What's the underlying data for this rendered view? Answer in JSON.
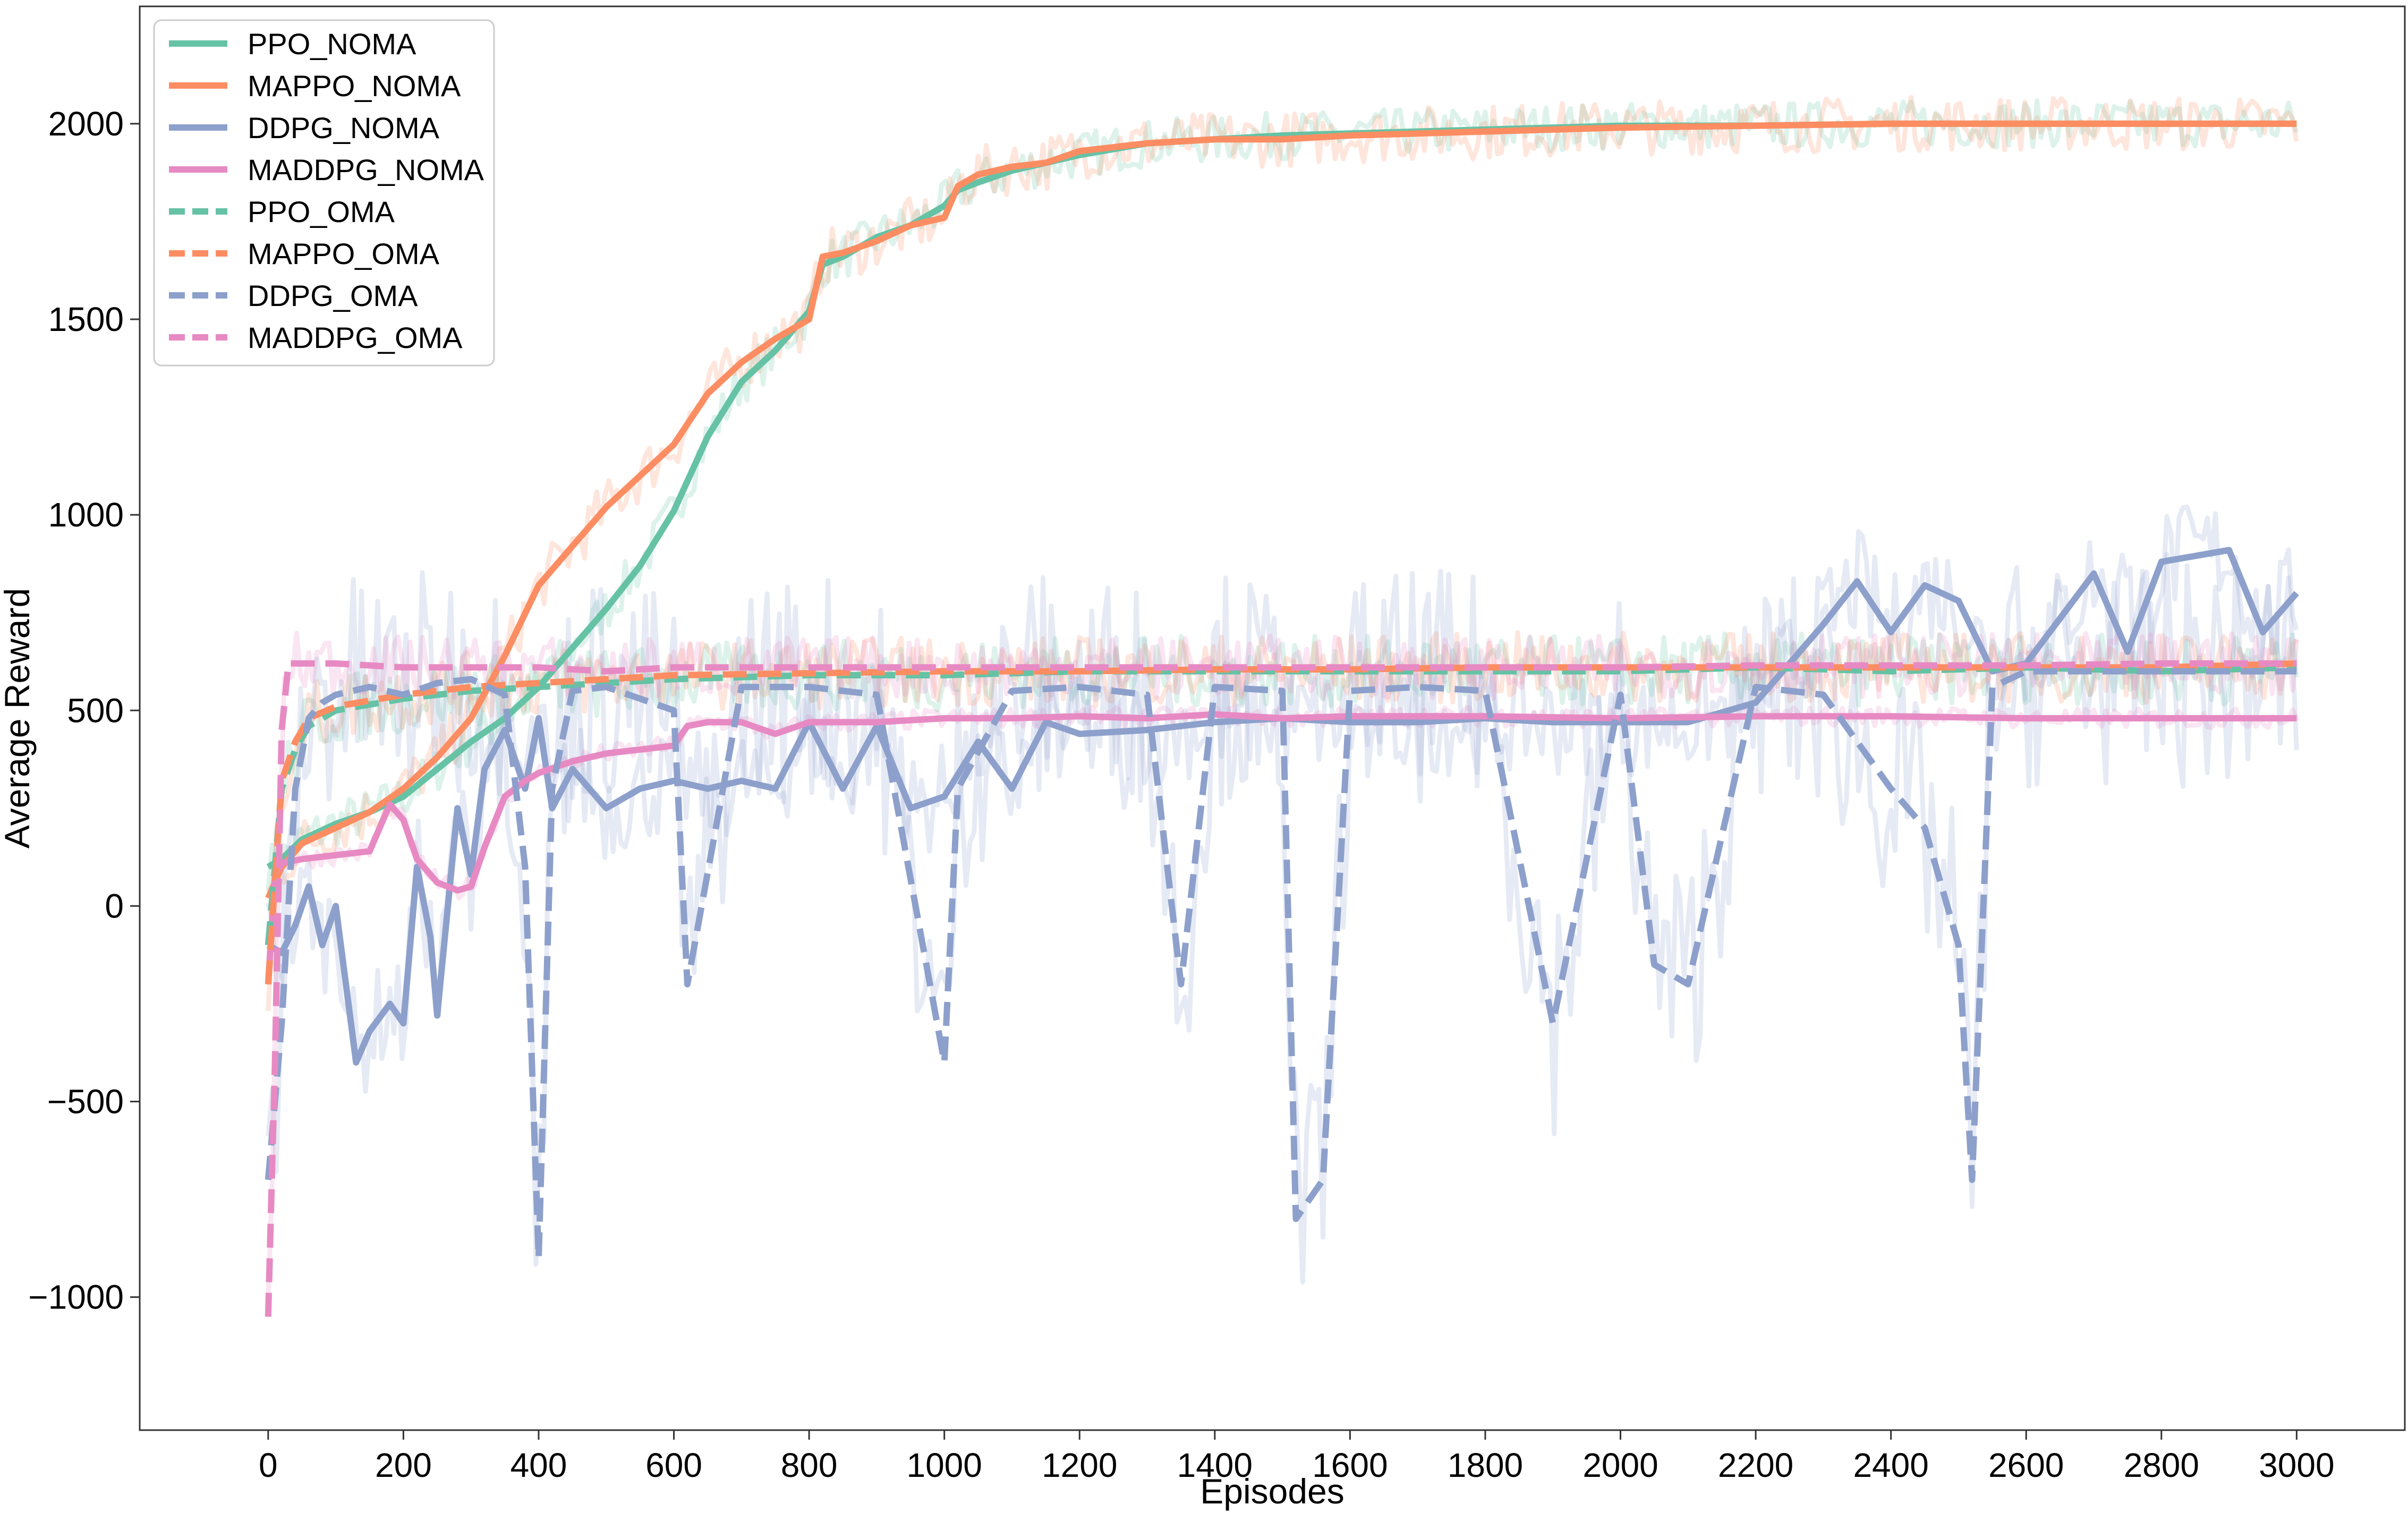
{
  "chart_data": {
    "type": "line",
    "title": "",
    "xlabel": "Episodes",
    "ylabel": "Average Reward",
    "xlim": [
      -190,
      3160
    ],
    "ylim": [
      -1340,
      2300
    ],
    "xticks": [
      0,
      200,
      400,
      600,
      800,
      1000,
      1200,
      1400,
      1600,
      1800,
      2000,
      2200,
      2400,
      2600,
      2800,
      3000
    ],
    "yticks": [
      -1000,
      -500,
      0,
      500,
      1000,
      1500,
      2000
    ],
    "grid": false,
    "legend_position": "top-left",
    "series": [
      {
        "name": "PPO_NOMA",
        "color": "#66c2a5",
        "dash": "solid",
        "x": [
          0,
          20,
          50,
          100,
          150,
          200,
          250,
          300,
          350,
          400,
          450,
          500,
          550,
          600,
          650,
          700,
          750,
          800,
          820,
          850,
          900,
          950,
          1000,
          1020,
          1050,
          1100,
          1150,
          1200,
          1300,
          1400,
          1500,
          1600,
          1700,
          1800,
          1900,
          2000,
          2200,
          2400,
          2600,
          2800,
          3000
        ],
        "y": [
          100,
          120,
          170,
          210,
          240,
          280,
          350,
          420,
          480,
          560,
          660,
          760,
          870,
          1010,
          1200,
          1340,
          1420,
          1520,
          1640,
          1660,
          1710,
          1740,
          1790,
          1830,
          1850,
          1880,
          1900,
          1920,
          1950,
          1960,
          1970,
          1975,
          1980,
          1985,
          1990,
          1995,
          1995,
          2000,
          2000,
          2000,
          2000
        ]
      },
      {
        "name": "MAPPO_NOMA",
        "color": "#fc8d62",
        "dash": "solid",
        "x": [
          0,
          20,
          50,
          100,
          150,
          200,
          250,
          300,
          350,
          400,
          450,
          500,
          550,
          600,
          650,
          700,
          750,
          800,
          820,
          850,
          900,
          950,
          1000,
          1020,
          1050,
          1100,
          1150,
          1200,
          1300,
          1400,
          1500,
          1600,
          1700,
          1800,
          1900,
          2000,
          2200,
          2400,
          2600,
          2800,
          3000
        ],
        "y": [
          20,
          100,
          160,
          200,
          240,
          300,
          380,
          480,
          640,
          820,
          920,
          1020,
          1100,
          1180,
          1310,
          1390,
          1450,
          1500,
          1660,
          1670,
          1700,
          1740,
          1760,
          1840,
          1870,
          1890,
          1900,
          1930,
          1950,
          1960,
          1960,
          1970,
          1975,
          1980,
          1985,
          1990,
          1995,
          2000,
          2000,
          2000,
          2000
        ]
      },
      {
        "name": "DDPG_NOMA",
        "color": "#8da0cb",
        "dash": "solid",
        "x": [
          0,
          20,
          40,
          60,
          80,
          100,
          130,
          150,
          180,
          200,
          220,
          240,
          250,
          280,
          300,
          320,
          350,
          380,
          400,
          420,
          450,
          500,
          550,
          600,
          650,
          700,
          750,
          800,
          850,
          900,
          950,
          1000,
          1050,
          1100,
          1150,
          1200,
          1300,
          1400,
          1500,
          1600,
          1700,
          1800,
          1900,
          2000,
          2100,
          2200,
          2300,
          2350,
          2400,
          2450,
          2500,
          2550,
          2600,
          2700,
          2750,
          2800,
          2900,
          2950,
          3000
        ],
        "y": [
          -100,
          -120,
          -50,
          50,
          -100,
          0,
          -400,
          -320,
          -250,
          -300,
          100,
          -80,
          -280,
          250,
          80,
          350,
          450,
          300,
          480,
          250,
          350,
          250,
          300,
          320,
          300,
          320,
          300,
          470,
          300,
          460,
          250,
          280,
          420,
          300,
          470,
          440,
          450,
          470,
          480,
          470,
          470,
          480,
          470,
          470,
          470,
          520,
          720,
          830,
          700,
          820,
          780,
          600,
          620,
          850,
          650,
          880,
          910,
          700,
          800
        ]
      },
      {
        "name": "MADDPG_NOMA",
        "color": "#e78ac3",
        "dash": "solid",
        "x": [
          0,
          10,
          20,
          50,
          100,
          150,
          180,
          200,
          220,
          250,
          280,
          300,
          320,
          350,
          380,
          400,
          450,
          500,
          550,
          600,
          620,
          650,
          700,
          750,
          800,
          900,
          1000,
          1100,
          1200,
          1300,
          1400,
          1500,
          1600,
          1800,
          2000,
          2200,
          2400,
          2600,
          2800,
          3000
        ],
        "y": [
          -200,
          80,
          110,
          120,
          130,
          140,
          260,
          220,
          120,
          60,
          40,
          50,
          150,
          280,
          320,
          340,
          370,
          390,
          400,
          410,
          460,
          470,
          470,
          440,
          470,
          470,
          480,
          480,
          485,
          480,
          490,
          480,
          485,
          485,
          480,
          485,
          485,
          480,
          480,
          480
        ]
      },
      {
        "name": "PPO_OMA",
        "color": "#66c2a5",
        "dash": "dashed",
        "x": [
          0,
          20,
          40,
          60,
          100,
          200,
          300,
          400,
          500,
          600,
          800,
          1000,
          1200,
          1400,
          1600,
          1800,
          2000,
          2200,
          2400,
          2600,
          2800,
          3000
        ],
        "y": [
          -100,
          300,
          400,
          460,
          500,
          530,
          550,
          560,
          570,
          580,
          590,
          590,
          600,
          600,
          600,
          600,
          600,
          610,
          600,
          610,
          600,
          610
        ]
      },
      {
        "name": "MAPPO_OMA",
        "color": "#fc8d62",
        "dash": "dashed",
        "x": [
          0,
          20,
          40,
          60,
          100,
          200,
          300,
          400,
          500,
          600,
          800,
          1000,
          1200,
          1400,
          1600,
          1800,
          2000,
          2200,
          2400,
          2600,
          2800,
          3000
        ],
        "y": [
          -200,
          320,
          420,
          480,
          510,
          540,
          560,
          570,
          580,
          590,
          595,
          600,
          600,
          605,
          605,
          610,
          610,
          610,
          610,
          610,
          610,
          620
        ]
      },
      {
        "name": "DDPG_OMA",
        "color": "#8da0cb",
        "dash": "dashed",
        "x": [
          0,
          20,
          40,
          60,
          80,
          100,
          150,
          200,
          250,
          300,
          350,
          380,
          400,
          420,
          450,
          500,
          600,
          620,
          700,
          800,
          900,
          1000,
          1020,
          1100,
          1200,
          1300,
          1350,
          1400,
          1500,
          1520,
          1560,
          1600,
          1700,
          1800,
          1900,
          2000,
          2050,
          2100,
          2200,
          2300,
          2400,
          2450,
          2500,
          2520,
          2550,
          2600,
          2800,
          3000
        ],
        "y": [
          -700,
          -300,
          300,
          480,
          520,
          540,
          560,
          540,
          570,
          580,
          540,
          100,
          -900,
          300,
          550,
          560,
          500,
          -200,
          560,
          560,
          540,
          -400,
          300,
          550,
          560,
          540,
          -200,
          560,
          550,
          -800,
          -700,
          550,
          560,
          550,
          -300,
          540,
          -150,
          -200,
          560,
          540,
          300,
          200,
          -100,
          -700,
          560,
          600,
          600,
          600
        ]
      },
      {
        "name": "MADDPG_OMA",
        "color": "#e78ac3",
        "dash": "dashed",
        "x": [
          0,
          10,
          20,
          30,
          50,
          100,
          200,
          300,
          400,
          500,
          600,
          800,
          1000,
          1200,
          1400,
          1600,
          1800,
          2000,
          2200,
          2400,
          2600,
          2800,
          3000
        ],
        "y": [
          -1050,
          -400,
          450,
          620,
          620,
          620,
          610,
          610,
          610,
          600,
          610,
          610,
          610,
          610,
          610,
          610,
          610,
          610,
          615,
          615,
          615,
          620,
          620
        ]
      }
    ]
  }
}
